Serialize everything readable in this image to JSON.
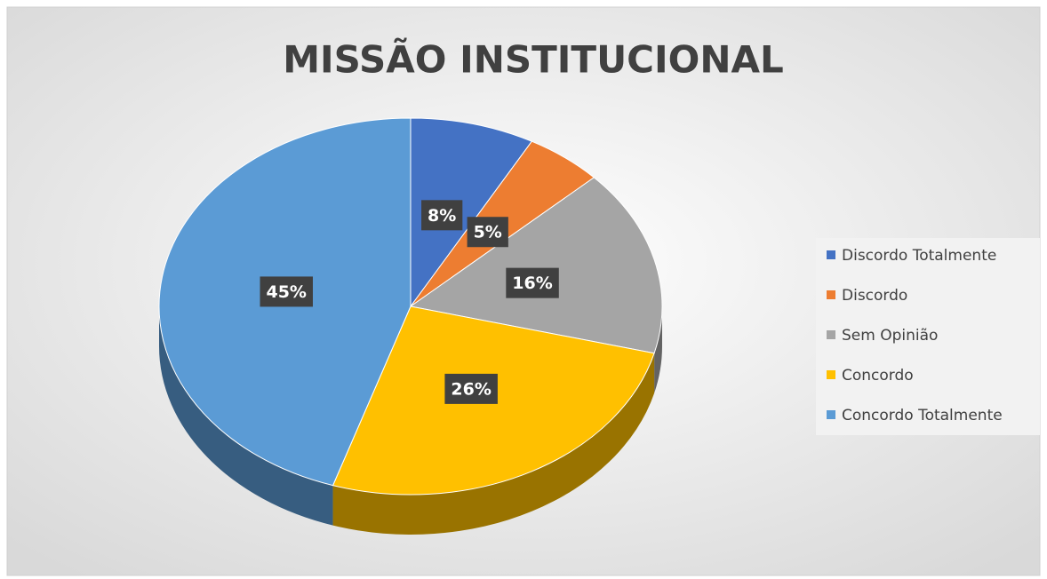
{
  "chart_data": {
    "type": "pie",
    "title": "MISSÃO INSTITUCIONAL",
    "categories": [
      "Discordo Totalmente",
      "Discordo",
      "Sem Opinião",
      "Concordo",
      "Concordo Totalmente"
    ],
    "values": [
      8,
      5,
      16,
      26,
      45
    ],
    "value_labels": [
      "8%",
      "5%",
      "16%",
      "26%",
      "45%"
    ],
    "colors": [
      "#4472c4",
      "#ed7d31",
      "#a5a5a5",
      "#ffc000",
      "#5b9bd5"
    ],
    "legend": "right"
  }
}
